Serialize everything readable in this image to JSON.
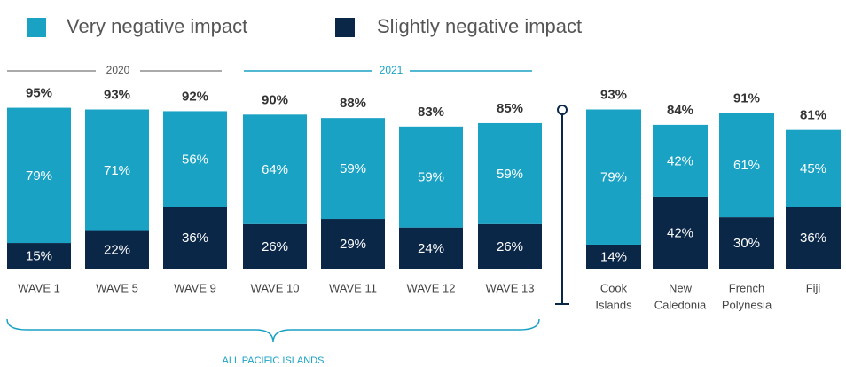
{
  "chart_data": {
    "type": "bar",
    "stacked": true,
    "periods": [
      "2020",
      "2021"
    ],
    "group_label": "ALL PACIFIC ISLANDS",
    "categories": [
      [
        "WAVE 1"
      ],
      [
        "WAVE 5"
      ],
      [
        "WAVE 9"
      ],
      [
        "WAVE 10"
      ],
      [
        "WAVE 11"
      ],
      [
        "WAVE 12"
      ],
      [
        "WAVE 13"
      ],
      [
        "Cook",
        "Islands"
      ],
      [
        "New",
        "Caledonia"
      ],
      [
        "French",
        "Polynesia"
      ],
      [
        "Fiji"
      ]
    ],
    "series": [
      {
        "name": "Very negative impact",
        "color": "#1aa2c4",
        "values": [
          79,
          71,
          56,
          64,
          59,
          59,
          59,
          79,
          42,
          61,
          45
        ],
        "value_labels": [
          "79%",
          "71%",
          "56%",
          "64%",
          "59%",
          "59%",
          "59%",
          "79%",
          "42%",
          "61%",
          "45%"
        ]
      },
      {
        "name": "Slightly negative impact",
        "color": "#0b2748",
        "values": [
          15,
          22,
          36,
          26,
          29,
          24,
          26,
          14,
          42,
          30,
          36
        ],
        "value_labels": [
          "15%",
          "22%",
          "36%",
          "26%",
          "29%",
          "24%",
          "26%",
          "14%",
          "42%",
          "30%",
          "36%"
        ]
      }
    ],
    "totals": [
      95,
      93,
      92,
      90,
      88,
      83,
      85,
      93,
      84,
      91,
      81
    ],
    "total_labels": [
      "95%",
      "93%",
      "92%",
      "90%",
      "88%",
      "83%",
      "85%",
      "93%",
      "84%",
      "91%",
      "81%"
    ]
  }
}
